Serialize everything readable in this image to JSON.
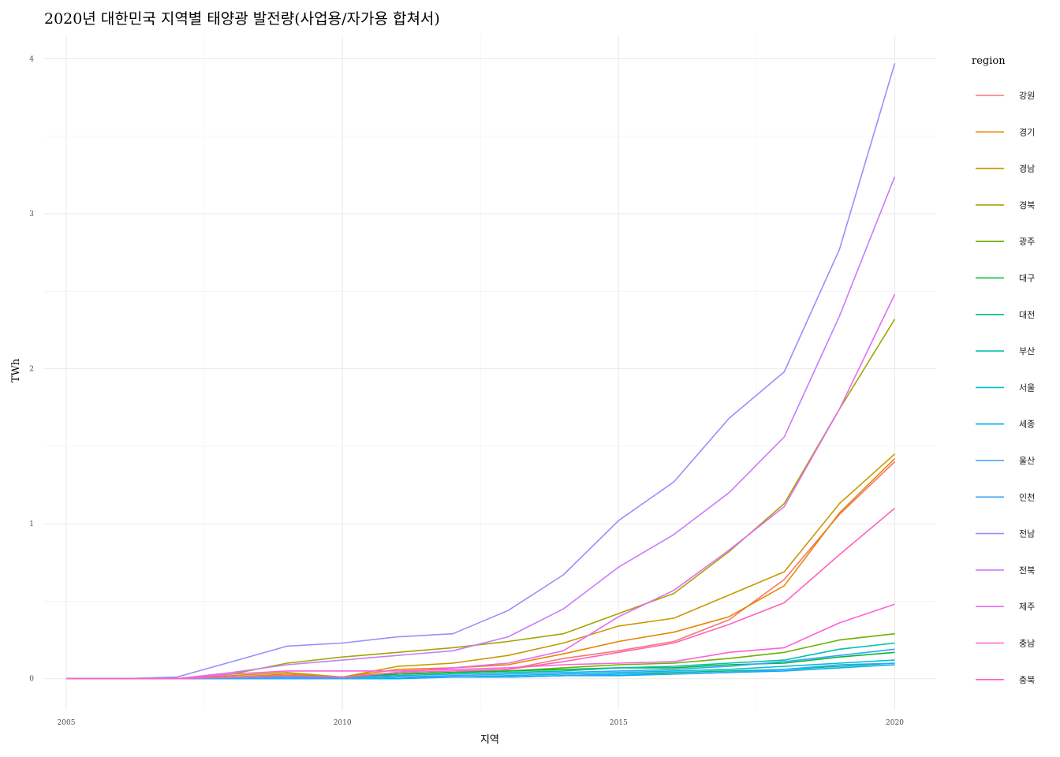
{
  "chart_data": {
    "type": "line",
    "title": "2020년 대한민국 지역별 태양광 발전량(사업용/자가용 합쳐서)",
    "xlabel": "지역",
    "ylabel": "TWh",
    "xlim": [
      2004.6,
      2020.75
    ],
    "ylim": [
      -0.2,
      4.15
    ],
    "x_ticks": [
      2005,
      2010,
      2015,
      2020
    ],
    "y_ticks": [
      0,
      1,
      2,
      3,
      4
    ],
    "grid": true,
    "legend": {
      "title": "region",
      "placement": "right"
    },
    "x": [
      2005,
      2006,
      2007,
      2008,
      2009,
      2010,
      2011,
      2012,
      2013,
      2014,
      2015,
      2016,
      2017,
      2018,
      2019,
      2020
    ],
    "series": [
      {
        "name": "강원",
        "color": "#F8766D",
        "values": [
          0.0,
          0.0,
          0.0,
          0.01,
          0.02,
          0.0,
          0.03,
          0.04,
          0.06,
          0.13,
          0.18,
          0.24,
          0.38,
          0.64,
          1.06,
          1.4
        ]
      },
      {
        "name": "경기",
        "color": "#E58700",
        "values": [
          0.0,
          0.0,
          0.0,
          0.01,
          0.03,
          0.01,
          0.06,
          0.07,
          0.09,
          0.16,
          0.24,
          0.3,
          0.4,
          0.6,
          1.07,
          1.42
        ]
      },
      {
        "name": "경남",
        "color": "#C99800",
        "values": [
          0.0,
          0.0,
          0.0,
          0.02,
          0.04,
          0.01,
          0.08,
          0.1,
          0.15,
          0.23,
          0.34,
          0.39,
          0.54,
          0.69,
          1.13,
          1.45
        ]
      },
      {
        "name": "경북",
        "color": "#A3A500",
        "values": [
          0.0,
          0.0,
          0.0,
          0.03,
          0.1,
          0.14,
          0.17,
          0.2,
          0.24,
          0.29,
          0.42,
          0.55,
          0.82,
          1.13,
          1.74,
          2.32
        ]
      },
      {
        "name": "광주",
        "color": "#6BB100",
        "values": [
          0.0,
          0.0,
          0.0,
          0.01,
          0.02,
          0.01,
          0.03,
          0.04,
          0.05,
          0.07,
          0.09,
          0.1,
          0.13,
          0.17,
          0.25,
          0.29
        ]
      },
      {
        "name": "대구",
        "color": "#00BA38",
        "values": [
          0.0,
          0.0,
          0.0,
          0.01,
          0.02,
          0.01,
          0.03,
          0.04,
          0.05,
          0.06,
          0.07,
          0.07,
          0.09,
          0.1,
          0.14,
          0.17
        ]
      },
      {
        "name": "대전",
        "color": "#00BF7D",
        "values": [
          0.0,
          0.0,
          0.0,
          0.0,
          0.01,
          0.0,
          0.01,
          0.01,
          0.01,
          0.02,
          0.03,
          0.04,
          0.05,
          0.06,
          0.08,
          0.1
        ]
      },
      {
        "name": "부산",
        "color": "#00C0AF",
        "values": [
          0.0,
          0.0,
          0.0,
          0.0,
          0.01,
          0.01,
          0.02,
          0.03,
          0.04,
          0.05,
          0.07,
          0.08,
          0.1,
          0.12,
          0.19,
          0.23
        ]
      },
      {
        "name": "서울",
        "color": "#00BCD8",
        "values": [
          0.0,
          0.0,
          0.0,
          0.0,
          0.0,
          0.0,
          0.01,
          0.01,
          0.02,
          0.03,
          0.04,
          0.05,
          0.06,
          0.08,
          0.1,
          0.12
        ]
      },
      {
        "name": "세종",
        "color": "#00B0F6",
        "values": [
          0.0,
          0.0,
          0.0,
          0.0,
          0.0,
          0.0,
          0.0,
          0.01,
          0.01,
          0.02,
          0.02,
          0.03,
          0.04,
          0.05,
          0.07,
          0.09
        ]
      },
      {
        "name": "울산",
        "color": "#35A2FF",
        "values": [
          0.0,
          0.0,
          0.0,
          0.0,
          0.0,
          0.0,
          0.01,
          0.01,
          0.01,
          0.02,
          0.03,
          0.03,
          0.04,
          0.06,
          0.09,
          0.1
        ]
      },
      {
        "name": "인천",
        "color": "#35A2FF",
        "values": [
          0.0,
          0.0,
          0.0,
          0.0,
          0.01,
          0.0,
          0.01,
          0.02,
          0.03,
          0.04,
          0.05,
          0.06,
          0.08,
          0.11,
          0.15,
          0.19
        ]
      },
      {
        "name": "전남",
        "color": "#9590FF",
        "values": [
          0.0,
          0.0,
          0.01,
          0.11,
          0.21,
          0.23,
          0.27,
          0.29,
          0.44,
          0.67,
          1.02,
          1.27,
          1.68,
          1.98,
          2.77,
          3.97
        ]
      },
      {
        "name": "전북",
        "color": "#C77CFF",
        "values": [
          0.0,
          0.0,
          0.0,
          0.04,
          0.09,
          0.12,
          0.15,
          0.18,
          0.27,
          0.45,
          0.72,
          0.93,
          1.2,
          1.56,
          2.34,
          3.24
        ]
      },
      {
        "name": "제주",
        "color": "#E76BF3",
        "values": [
          0.0,
          0.0,
          0.0,
          0.01,
          0.02,
          0.01,
          0.04,
          0.07,
          0.1,
          0.18,
          0.4,
          0.57,
          0.83,
          1.11,
          1.74,
          2.48
        ]
      },
      {
        "name": "충남",
        "color": "#FA62DB",
        "values": [
          0.0,
          0.0,
          0.0,
          0.03,
          0.05,
          0.05,
          0.05,
          0.06,
          0.07,
          0.09,
          0.1,
          0.11,
          0.17,
          0.2,
          0.36,
          0.48
        ]
      },
      {
        "name": "충북",
        "color": "#FF62BC",
        "values": [
          0.0,
          0.0,
          0.0,
          0.01,
          0.02,
          0.01,
          0.04,
          0.05,
          0.06,
          0.11,
          0.17,
          0.23,
          0.35,
          0.49,
          0.8,
          1.1
        ]
      }
    ]
  }
}
